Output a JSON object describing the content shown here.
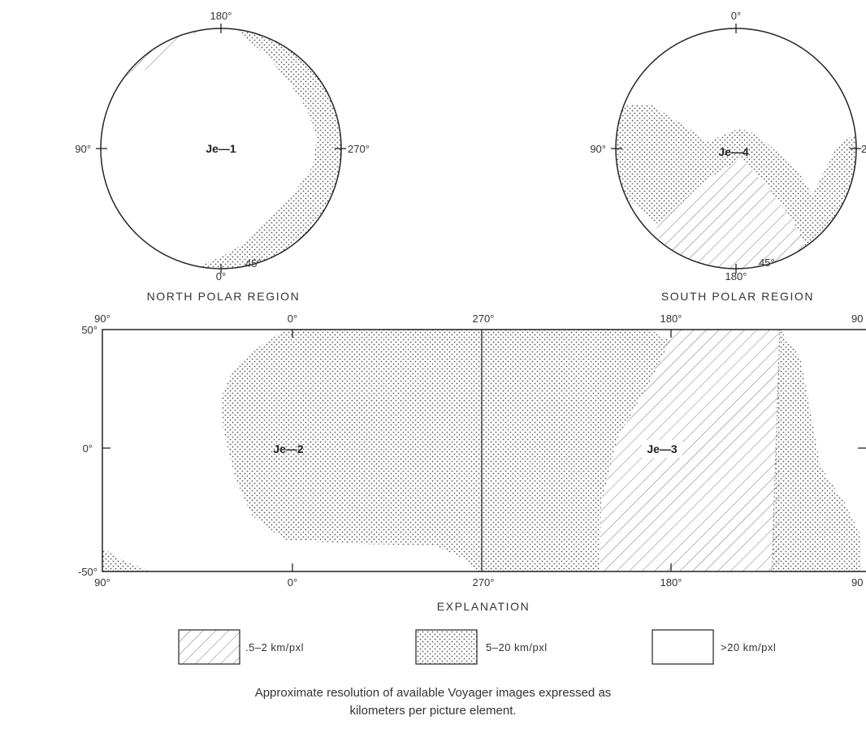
{
  "north_polar": {
    "title": "NORTH POLAR REGION",
    "lon_top": "180°",
    "lon_left": "90°",
    "lon_right": "270°",
    "lon_bottom": "0°",
    "lat_label": "45°",
    "region": "Je—1"
  },
  "south_polar": {
    "title": "SOUTH POLAR REGION",
    "lon_top": "0°",
    "lon_left": "90°",
    "lon_right": "2",
    "lon_bottom": "180°",
    "lat_label": "45°",
    "region": "Je—4"
  },
  "equatorial": {
    "top_lons": [
      "90°",
      "0°",
      "270°",
      "180°",
      "90"
    ],
    "bottom_lons": [
      "90°",
      "0°",
      "270°",
      "180°",
      "90"
    ],
    "lat_top": "50°",
    "lat_mid": "0°",
    "lat_bottom": "-50°",
    "region_left": "Je—2",
    "region_right": "Je—3"
  },
  "explanation": {
    "title": "EXPLANATION",
    "items": [
      {
        "pattern": "diagonal-lines",
        "label": ".5–2 km/pxl"
      },
      {
        "pattern": "dots",
        "label": "5–20 km/pxl"
      },
      {
        "pattern": "blank",
        "label": ">20 km/pxl"
      }
    ]
  },
  "caption": {
    "line1": "Approximate resolution of available Voyager images expressed as",
    "line2": "kilometers per picture element."
  }
}
